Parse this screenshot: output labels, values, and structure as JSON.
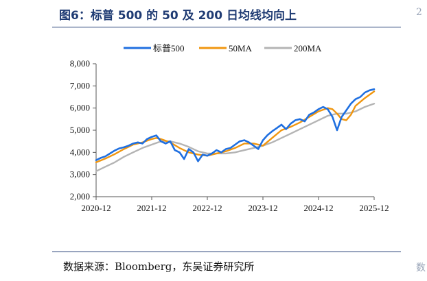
{
  "figure": {
    "title": "图6：标普 500 的 50 及 200 日均线均向上",
    "source": "数据来源：Bloomberg，东吴证券研究所",
    "edge_mark_top": "2",
    "edge_mark_bottom": "数"
  },
  "chart_data": {
    "type": "line",
    "title": "",
    "xlabel": "",
    "ylabel": "",
    "ylim": [
      2000,
      8000
    ],
    "y_ticks": [
      2000,
      3000,
      4000,
      5000,
      6000,
      7000,
      8000
    ],
    "y_tick_labels": [
      "2,000",
      "3,000",
      "4,000",
      "5,000",
      "6,000",
      "7,000",
      "8,000"
    ],
    "x_tick_labels": [
      "2020-12",
      "2021-12",
      "2022-12",
      "2023-12",
      "2024-12",
      "2025-12"
    ],
    "x_range": [
      2020.917,
      2025.917
    ],
    "legend_position": "top",
    "grid": false,
    "colors": {
      "sp500": "#1f6fe0",
      "ma50": "#f0960f",
      "ma200": "#b4b4b4"
    },
    "series": [
      {
        "name": "标普500",
        "x": [
          2020.917,
          2021.0,
          2021.083,
          2021.167,
          2021.25,
          2021.333,
          2021.417,
          2021.5,
          2021.583,
          2021.667,
          2021.75,
          2021.833,
          2021.917,
          2022.0,
          2022.083,
          2022.167,
          2022.25,
          2022.333,
          2022.417,
          2022.5,
          2022.583,
          2022.667,
          2022.75,
          2022.833,
          2022.917,
          2023.0,
          2023.083,
          2023.167,
          2023.25,
          2023.333,
          2023.417,
          2023.5,
          2023.583,
          2023.667,
          2023.75,
          2023.833,
          2023.917,
          2024.0,
          2024.083,
          2024.167,
          2024.25,
          2024.333,
          2024.417,
          2024.5,
          2024.583,
          2024.667,
          2024.75,
          2024.833,
          2024.917,
          2025.0,
          2025.083,
          2025.167,
          2025.25,
          2025.333,
          2025.417,
          2025.5,
          2025.583,
          2025.667,
          2025.75,
          2025.833,
          2025.917
        ],
        "values": [
          3650,
          3750,
          3820,
          3950,
          4080,
          4180,
          4230,
          4300,
          4400,
          4450,
          4400,
          4600,
          4700,
          4766,
          4500,
          4400,
          4500,
          4100,
          4000,
          3700,
          4150,
          4000,
          3600,
          3900,
          3850,
          3950,
          4100,
          4000,
          4150,
          4200,
          4350,
          4500,
          4550,
          4450,
          4300,
          4150,
          4550,
          4780,
          4950,
          5100,
          5250,
          5050,
          5300,
          5450,
          5500,
          5400,
          5700,
          5800,
          5950,
          6050,
          5950,
          5600,
          5000,
          5600,
          5900,
          6200,
          6400,
          6500,
          6700,
          6800,
          6850
        ]
      },
      {
        "name": "50MA",
        "x": [
          2020.917,
          2021.083,
          2021.25,
          2021.417,
          2021.583,
          2021.75,
          2021.917,
          2022.0,
          2022.083,
          2022.25,
          2022.417,
          2022.583,
          2022.75,
          2022.917,
          2023.083,
          2023.25,
          2023.417,
          2023.583,
          2023.75,
          2023.917,
          2024.083,
          2024.25,
          2024.417,
          2024.583,
          2024.75,
          2024.917,
          2025.083,
          2025.167,
          2025.25,
          2025.333,
          2025.417,
          2025.5,
          2025.583,
          2025.75,
          2025.917
        ],
        "values": [
          3550,
          3720,
          3920,
          4150,
          4350,
          4450,
          4600,
          4650,
          4600,
          4450,
          4200,
          4000,
          3900,
          3850,
          3950,
          4050,
          4200,
          4400,
          4400,
          4300,
          4650,
          5000,
          5150,
          5350,
          5600,
          5850,
          6000,
          5950,
          5750,
          5500,
          5450,
          5700,
          6100,
          6450,
          6750
        ]
      },
      {
        "name": "200MA",
        "x": [
          2020.917,
          2021.083,
          2021.25,
          2021.417,
          2021.583,
          2021.75,
          2021.917,
          2022.083,
          2022.25,
          2022.417,
          2022.583,
          2022.75,
          2022.917,
          2023.083,
          2023.25,
          2023.417,
          2023.583,
          2023.75,
          2023.917,
          2024.083,
          2024.25,
          2024.417,
          2024.583,
          2024.75,
          2024.917,
          2025.083,
          2025.25,
          2025.417,
          2025.583,
          2025.75,
          2025.917
        ],
        "values": [
          3150,
          3350,
          3550,
          3800,
          4000,
          4200,
          4350,
          4500,
          4500,
          4400,
          4250,
          4050,
          3950,
          3950,
          3950,
          4000,
          4100,
          4200,
          4300,
          4450,
          4650,
          4850,
          5050,
          5250,
          5450,
          5650,
          5750,
          5750,
          5850,
          6050,
          6200
        ]
      }
    ]
  }
}
